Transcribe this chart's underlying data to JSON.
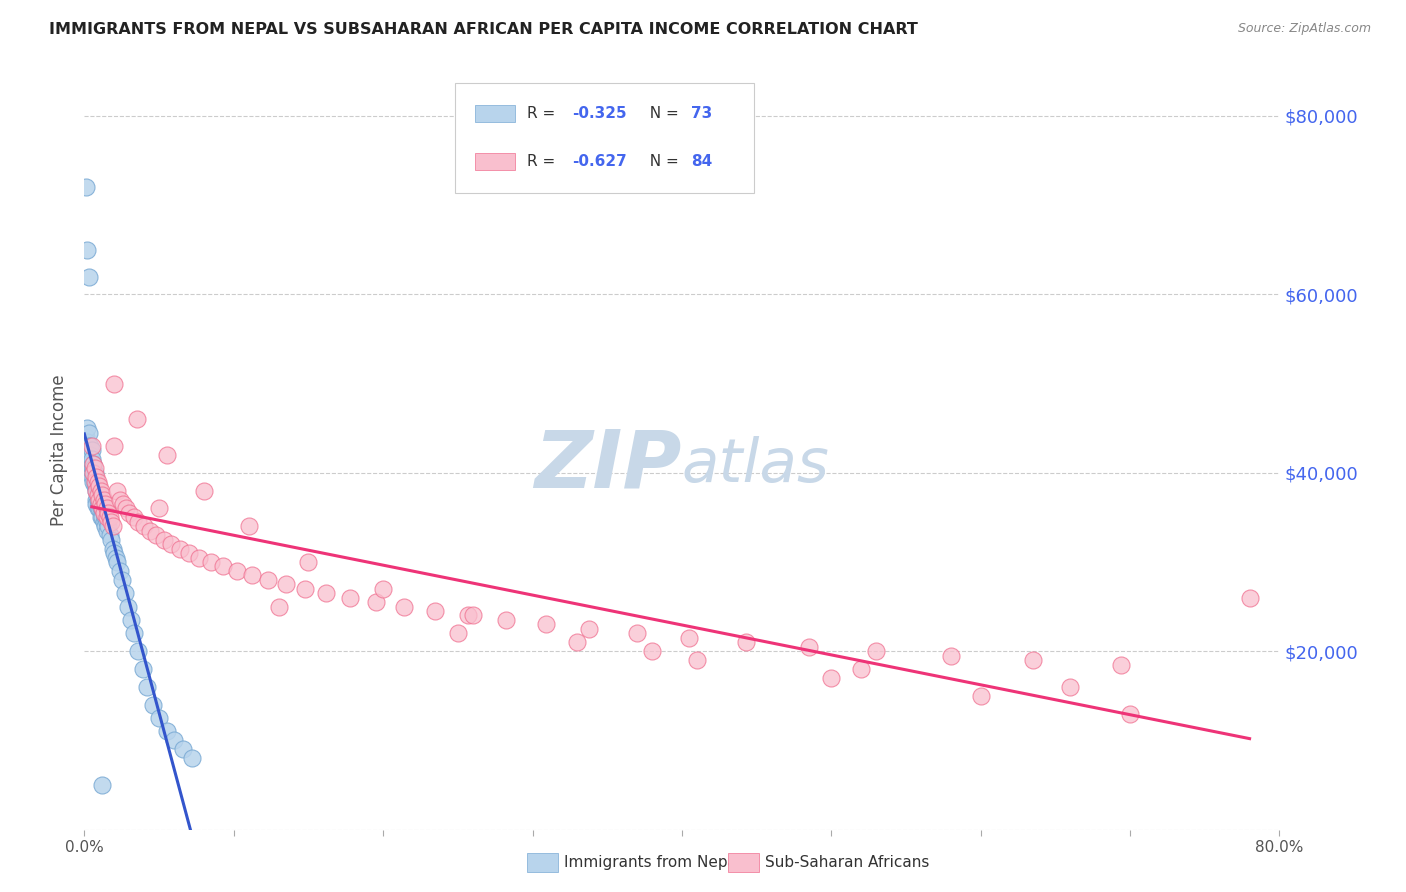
{
  "title": "IMMIGRANTS FROM NEPAL VS SUBSAHARAN AFRICAN PER CAPITA INCOME CORRELATION CHART",
  "source": "Source: ZipAtlas.com",
  "ylabel": "Per Capita Income",
  "y_ticks": [
    0,
    20000,
    40000,
    60000,
    80000
  ],
  "y_tick_labels": [
    "",
    "$20,000",
    "$40,000",
    "$60,000",
    "$80,000"
  ],
  "nepal_R": -0.325,
  "nepal_N": 73,
  "subsaharan_R": -0.627,
  "subsaharan_N": 84,
  "nepal_color": "#b8d4ec",
  "nepal_edge": "#7aaad4",
  "subsaharan_color": "#f9bfce",
  "subsaharan_edge": "#f07090",
  "line_nepal": "#3355cc",
  "line_sub": "#ee3377",
  "line_dash": "#b0c8d8",
  "background_color": "#ffffff",
  "grid_color": "#cccccc",
  "title_color": "#222222",
  "ylabel_color": "#555555",
  "right_tick_color": "#4466ee",
  "watermark_color": "#c8d8e8",
  "legend_nepal_label": "Immigrants from Nepal",
  "legend_subsaharan_label": "Sub-Saharan Africans",
  "nepal_scatter_x": [
    0.001,
    0.001,
    0.002,
    0.002,
    0.002,
    0.003,
    0.003,
    0.003,
    0.004,
    0.004,
    0.004,
    0.005,
    0.005,
    0.005,
    0.005,
    0.006,
    0.006,
    0.006,
    0.006,
    0.007,
    0.007,
    0.007,
    0.007,
    0.008,
    0.008,
    0.008,
    0.008,
    0.008,
    0.009,
    0.009,
    0.009,
    0.009,
    0.01,
    0.01,
    0.01,
    0.01,
    0.011,
    0.011,
    0.011,
    0.012,
    0.012,
    0.013,
    0.013,
    0.014,
    0.014,
    0.015,
    0.015,
    0.016,
    0.017,
    0.018,
    0.019,
    0.02,
    0.021,
    0.022,
    0.024,
    0.025,
    0.027,
    0.029,
    0.031,
    0.033,
    0.036,
    0.039,
    0.042,
    0.046,
    0.05,
    0.055,
    0.06,
    0.066,
    0.072,
    0.001,
    0.002,
    0.003,
    0.012
  ],
  "nepal_scatter_y": [
    44000,
    43000,
    45000,
    43500,
    42000,
    44500,
    43000,
    41500,
    43000,
    42000,
    41000,
    42500,
    41500,
    40500,
    39500,
    41000,
    40500,
    40000,
    39000,
    40000,
    39500,
    39000,
    38500,
    39000,
    38500,
    38000,
    37000,
    36500,
    38000,
    37500,
    37000,
    36000,
    37500,
    37000,
    36500,
    36000,
    36500,
    36000,
    35000,
    36000,
    35000,
    35500,
    34500,
    35000,
    34000,
    34500,
    33500,
    34000,
    33000,
    32500,
    31500,
    31000,
    30500,
    30000,
    29000,
    28000,
    26500,
    25000,
    23500,
    22000,
    20000,
    18000,
    16000,
    14000,
    12500,
    11000,
    10000,
    9000,
    8000,
    72000,
    65000,
    62000,
    5000
  ],
  "subsaharan_scatter_x": [
    0.005,
    0.006,
    0.006,
    0.007,
    0.007,
    0.008,
    0.008,
    0.009,
    0.009,
    0.01,
    0.01,
    0.011,
    0.011,
    0.012,
    0.012,
    0.013,
    0.013,
    0.014,
    0.015,
    0.015,
    0.016,
    0.017,
    0.018,
    0.019,
    0.02,
    0.022,
    0.024,
    0.026,
    0.028,
    0.03,
    0.033,
    0.036,
    0.04,
    0.044,
    0.048,
    0.053,
    0.058,
    0.064,
    0.07,
    0.077,
    0.085,
    0.093,
    0.102,
    0.112,
    0.123,
    0.135,
    0.148,
    0.162,
    0.178,
    0.195,
    0.214,
    0.235,
    0.257,
    0.282,
    0.309,
    0.338,
    0.37,
    0.405,
    0.443,
    0.485,
    0.53,
    0.58,
    0.635,
    0.694,
    0.02,
    0.035,
    0.055,
    0.08,
    0.11,
    0.15,
    0.2,
    0.26,
    0.33,
    0.41,
    0.5,
    0.6,
    0.7,
    0.13,
    0.25,
    0.38,
    0.52,
    0.66,
    0.78,
    0.05
  ],
  "subsaharan_scatter_y": [
    43000,
    41000,
    40000,
    40500,
    39000,
    39500,
    38000,
    39000,
    37500,
    38500,
    37000,
    38000,
    36500,
    37500,
    36000,
    37000,
    35500,
    36500,
    36000,
    35000,
    35500,
    35000,
    34500,
    34000,
    43000,
    38000,
    37000,
    36500,
    36000,
    35500,
    35000,
    34500,
    34000,
    33500,
    33000,
    32500,
    32000,
    31500,
    31000,
    30500,
    30000,
    29500,
    29000,
    28500,
    28000,
    27500,
    27000,
    26500,
    26000,
    25500,
    25000,
    24500,
    24000,
    23500,
    23000,
    22500,
    22000,
    21500,
    21000,
    20500,
    20000,
    19500,
    19000,
    18500,
    50000,
    46000,
    42000,
    38000,
    34000,
    30000,
    27000,
    24000,
    21000,
    19000,
    17000,
    15000,
    13000,
    25000,
    22000,
    20000,
    18000,
    16000,
    26000,
    36000
  ]
}
